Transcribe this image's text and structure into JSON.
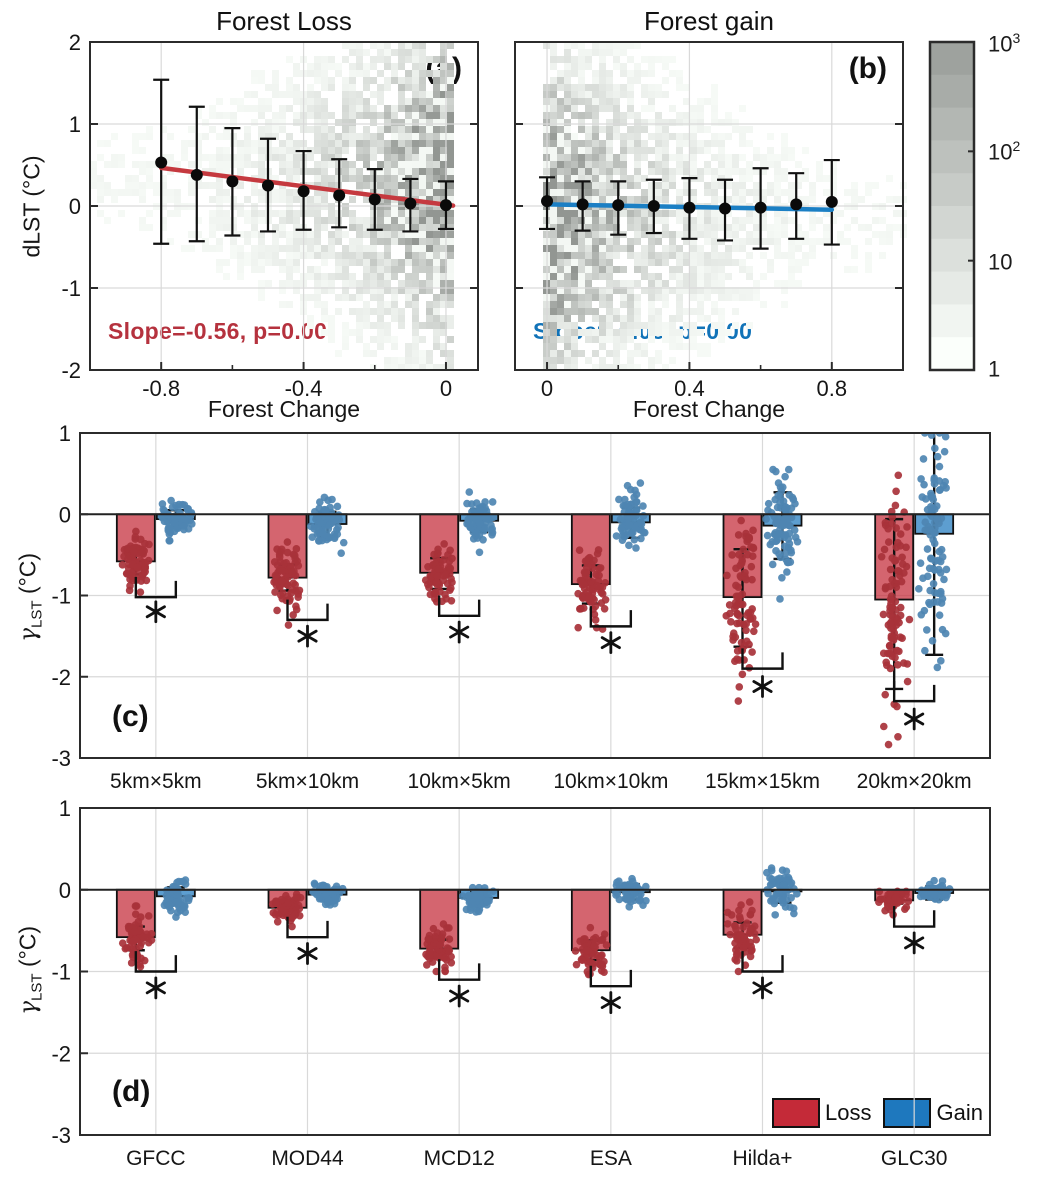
{
  "figure": {
    "colors": {
      "loss_solid": "#C42A38",
      "loss_dot": "#A8323A",
      "loss_line": "#C5393F",
      "loss_text": "#B5323E",
      "gain_solid": "#1E78BE",
      "gain_dot": "#4E86B2",
      "gain_line": "#1B7FC4",
      "gain_text": "#1173B8",
      "grid": "#d9d9d9",
      "frame": "#2b2b2b"
    }
  },
  "axis_labels": {
    "dlst": "dLST (°C)",
    "gamma": "γ",
    "gamma_sub": "LST",
    "gamma_unit": " (°C)",
    "forest_change_a": "Forest Change",
    "forest_change_b": "Forest Change"
  },
  "chart_data": [
    {
      "id": "a",
      "type": "scatter",
      "title": "Forest Loss",
      "panel_label": "(a)",
      "xlabel": "Forest Change",
      "ylabel": "dLST (°C)",
      "xlim": [
        -1.0,
        0.09
      ],
      "ylim": [
        -2,
        2
      ],
      "xticks": [
        -0.8,
        -0.4,
        0
      ],
      "xminor": [
        -0.6,
        -0.2
      ],
      "yticks": [
        -2,
        -1,
        0,
        1,
        2
      ],
      "show_ytick_labels": true,
      "series_key": "loss",
      "annotation": {
        "text": "Slope=-0.56, p=0.00"
      },
      "fit": {
        "x": [
          -0.8,
          0.02
        ],
        "y": [
          0.465,
          0.005
        ]
      },
      "points": {
        "x": [
          -0.8,
          -0.7,
          -0.6,
          -0.5,
          -0.4,
          -0.3,
          -0.2,
          -0.1,
          0
        ],
        "y": [
          0.53,
          0.38,
          0.3,
          0.25,
          0.18,
          0.13,
          0.08,
          0.03,
          0.01
        ],
        "lo": [
          -0.46,
          -0.43,
          -0.36,
          -0.31,
          -0.29,
          -0.26,
          -0.29,
          -0.31,
          -0.28
        ],
        "hi": [
          1.54,
          1.21,
          0.95,
          0.82,
          0.67,
          0.57,
          0.45,
          0.33,
          0.3
        ]
      },
      "density": {
        "side": "right",
        "seed": 7
      }
    },
    {
      "id": "b",
      "type": "scatter",
      "title": "Forest gain",
      "panel_label": "(b)",
      "xlabel": "Forest Change",
      "xlim": [
        -0.09,
        1.0
      ],
      "ylim": [
        -2,
        2
      ],
      "xticks": [
        0,
        0.4,
        0.8
      ],
      "xminor": [
        0.2,
        0.6
      ],
      "yticks": [
        -2,
        -1,
        0,
        1,
        2
      ],
      "show_ytick_labels": false,
      "series_key": "gain",
      "annotation": {
        "text": "Slope=-0.08, p=0.00"
      },
      "fit": {
        "x": [
          0,
          0.8
        ],
        "y": [
          0.02,
          -0.045
        ]
      },
      "points": {
        "x": [
          0,
          0.1,
          0.2,
          0.3,
          0.4,
          0.5,
          0.6,
          0.7,
          0.8
        ],
        "y": [
          0.06,
          0.02,
          0.01,
          0.0,
          -0.02,
          -0.03,
          -0.02,
          0.02,
          0.05
        ],
        "lo": [
          -0.28,
          -0.3,
          -0.35,
          -0.33,
          -0.4,
          -0.42,
          -0.52,
          -0.4,
          -0.47
        ],
        "hi": [
          0.35,
          0.3,
          0.3,
          0.32,
          0.34,
          0.32,
          0.46,
          0.4,
          0.56
        ]
      },
      "density": {
        "side": "left",
        "seed": 13
      }
    },
    {
      "id": "c",
      "type": "bar",
      "panel_label": "(c)",
      "ylabel": "γLST (°C)",
      "ylim": [
        -3,
        1
      ],
      "yticks": [
        1,
        0,
        -1,
        -2,
        -3
      ],
      "categories": [
        "5km×5km",
        "5km×10km",
        "10km×5km",
        "10km×10km",
        "15km×15km",
        "20km×20km"
      ],
      "seed": 101,
      "series": [
        {
          "name": "Loss",
          "key": "loss",
          "values": [
            -0.58,
            -0.78,
            -0.72,
            -0.86,
            -1.02,
            -1.05
          ],
          "err_lo": [
            -0.74,
            -0.94,
            -0.92,
            -1.1,
            -1.63,
            -2.15
          ],
          "err_hi": [
            -0.46,
            -0.62,
            -0.54,
            -0.63,
            -0.43,
            -0.06
          ],
          "dots": {
            "n": [
              75,
              75,
              75,
              75,
              85,
              95
            ],
            "sd": [
              0.16,
              0.2,
              0.18,
              0.25,
              0.55,
              0.75
            ],
            "min": [
              -1.1,
              -1.4,
              -1.25,
              -1.55,
              -2.9,
              -2.95
            ],
            "max": [
              -0.1,
              -0.2,
              -0.25,
              -0.3,
              0.6,
              0.95
            ]
          }
        },
        {
          "name": "Gain",
          "key": "gain",
          "values": [
            -0.06,
            -0.12,
            -0.08,
            -0.1,
            -0.14,
            -0.24
          ],
          "err_lo": [
            -0.16,
            -0.27,
            -0.22,
            -0.29,
            -0.55,
            -1.73
          ],
          "err_hi": [
            0.05,
            0.03,
            0.06,
            0.08,
            0.27,
            1.05
          ],
          "dots": {
            "n": [
              75,
              75,
              75,
              75,
              85,
              95
            ],
            "sd": [
              0.1,
              0.14,
              0.12,
              0.17,
              0.3,
              0.65
            ],
            "min": [
              -0.5,
              -0.8,
              -0.5,
              -0.65,
              -1.35,
              -2.7
            ],
            "max": [
              0.32,
              0.3,
              0.42,
              0.45,
              0.55,
              1.0
            ]
          }
        }
      ],
      "sig": {
        "bracket_y": [
          -1.02,
          -1.3,
          -1.25,
          -1.38,
          -1.9,
          -2.3
        ],
        "star_y": [
          -1.2,
          -1.5,
          -1.45,
          -1.58,
          -2.12,
          -2.52
        ]
      }
    },
    {
      "id": "d",
      "type": "bar",
      "panel_label": "(d)",
      "ylabel": "γLST (°C)",
      "ylim": [
        -3,
        1
      ],
      "yticks": [
        1,
        0,
        -1,
        -2,
        -3
      ],
      "categories": [
        "GFCC",
        "MOD44",
        "MCD12",
        "ESA",
        "Hilda+",
        "GLC30"
      ],
      "seed": 202,
      "series": [
        {
          "name": "Loss",
          "key": "loss",
          "values": [
            -0.58,
            -0.22,
            -0.72,
            -0.74,
            -0.55,
            -0.13
          ],
          "err_lo": [
            -0.74,
            -0.31,
            -0.83,
            -0.86,
            -0.71,
            -0.17
          ],
          "err_hi": [
            -0.45,
            -0.14,
            -0.61,
            -0.62,
            -0.4,
            -0.09
          ],
          "dots": {
            "n": [
              60,
              60,
              60,
              60,
              60,
              55
            ],
            "sd": [
              0.16,
              0.09,
              0.12,
              0.14,
              0.17,
              0.06
            ],
            "min": [
              -1.05,
              -0.48,
              -1.0,
              -1.15,
              -1.0,
              -0.38
            ],
            "max": [
              -0.2,
              -0.02,
              -0.42,
              -0.38,
              -0.15,
              -0.02
            ]
          }
        },
        {
          "name": "Gain",
          "key": "gain",
          "values": [
            -0.08,
            -0.06,
            -0.1,
            -0.03,
            -0.02,
            -0.04
          ],
          "err_lo": [
            -0.19,
            -0.12,
            -0.18,
            -0.12,
            -0.16,
            -0.12
          ],
          "err_hi": [
            0.03,
            0.01,
            -0.02,
            0.07,
            0.12,
            0.04
          ],
          "dots": {
            "n": [
              60,
              60,
              60,
              60,
              60,
              55
            ],
            "sd": [
              0.1,
              0.06,
              0.08,
              0.08,
              0.12,
              0.05
            ],
            "min": [
              -0.4,
              -0.2,
              -0.3,
              -0.25,
              -0.35,
              -0.18
            ],
            "max": [
              0.28,
              0.12,
              0.08,
              0.18,
              0.38,
              0.12
            ]
          }
        }
      ],
      "sig": {
        "bracket_y": [
          -1.0,
          -0.58,
          -1.1,
          -1.18,
          -1.0,
          -0.45
        ],
        "star_y": [
          -1.2,
          -0.78,
          -1.3,
          -1.38,
          -1.2,
          -0.65
        ]
      },
      "legend": [
        {
          "label": "Loss",
          "key": "loss"
        },
        {
          "label": "Gain",
          "key": "gain"
        }
      ]
    }
  ],
  "colorbar": {
    "steps": 10,
    "top_gray": "#A2A8A2",
    "labels": [
      {
        "base": "10",
        "sup": "3"
      },
      {
        "base": "10",
        "sup": "2"
      },
      {
        "base": "10",
        "sup": ""
      },
      {
        "base": "1",
        "sup": ""
      }
    ]
  }
}
